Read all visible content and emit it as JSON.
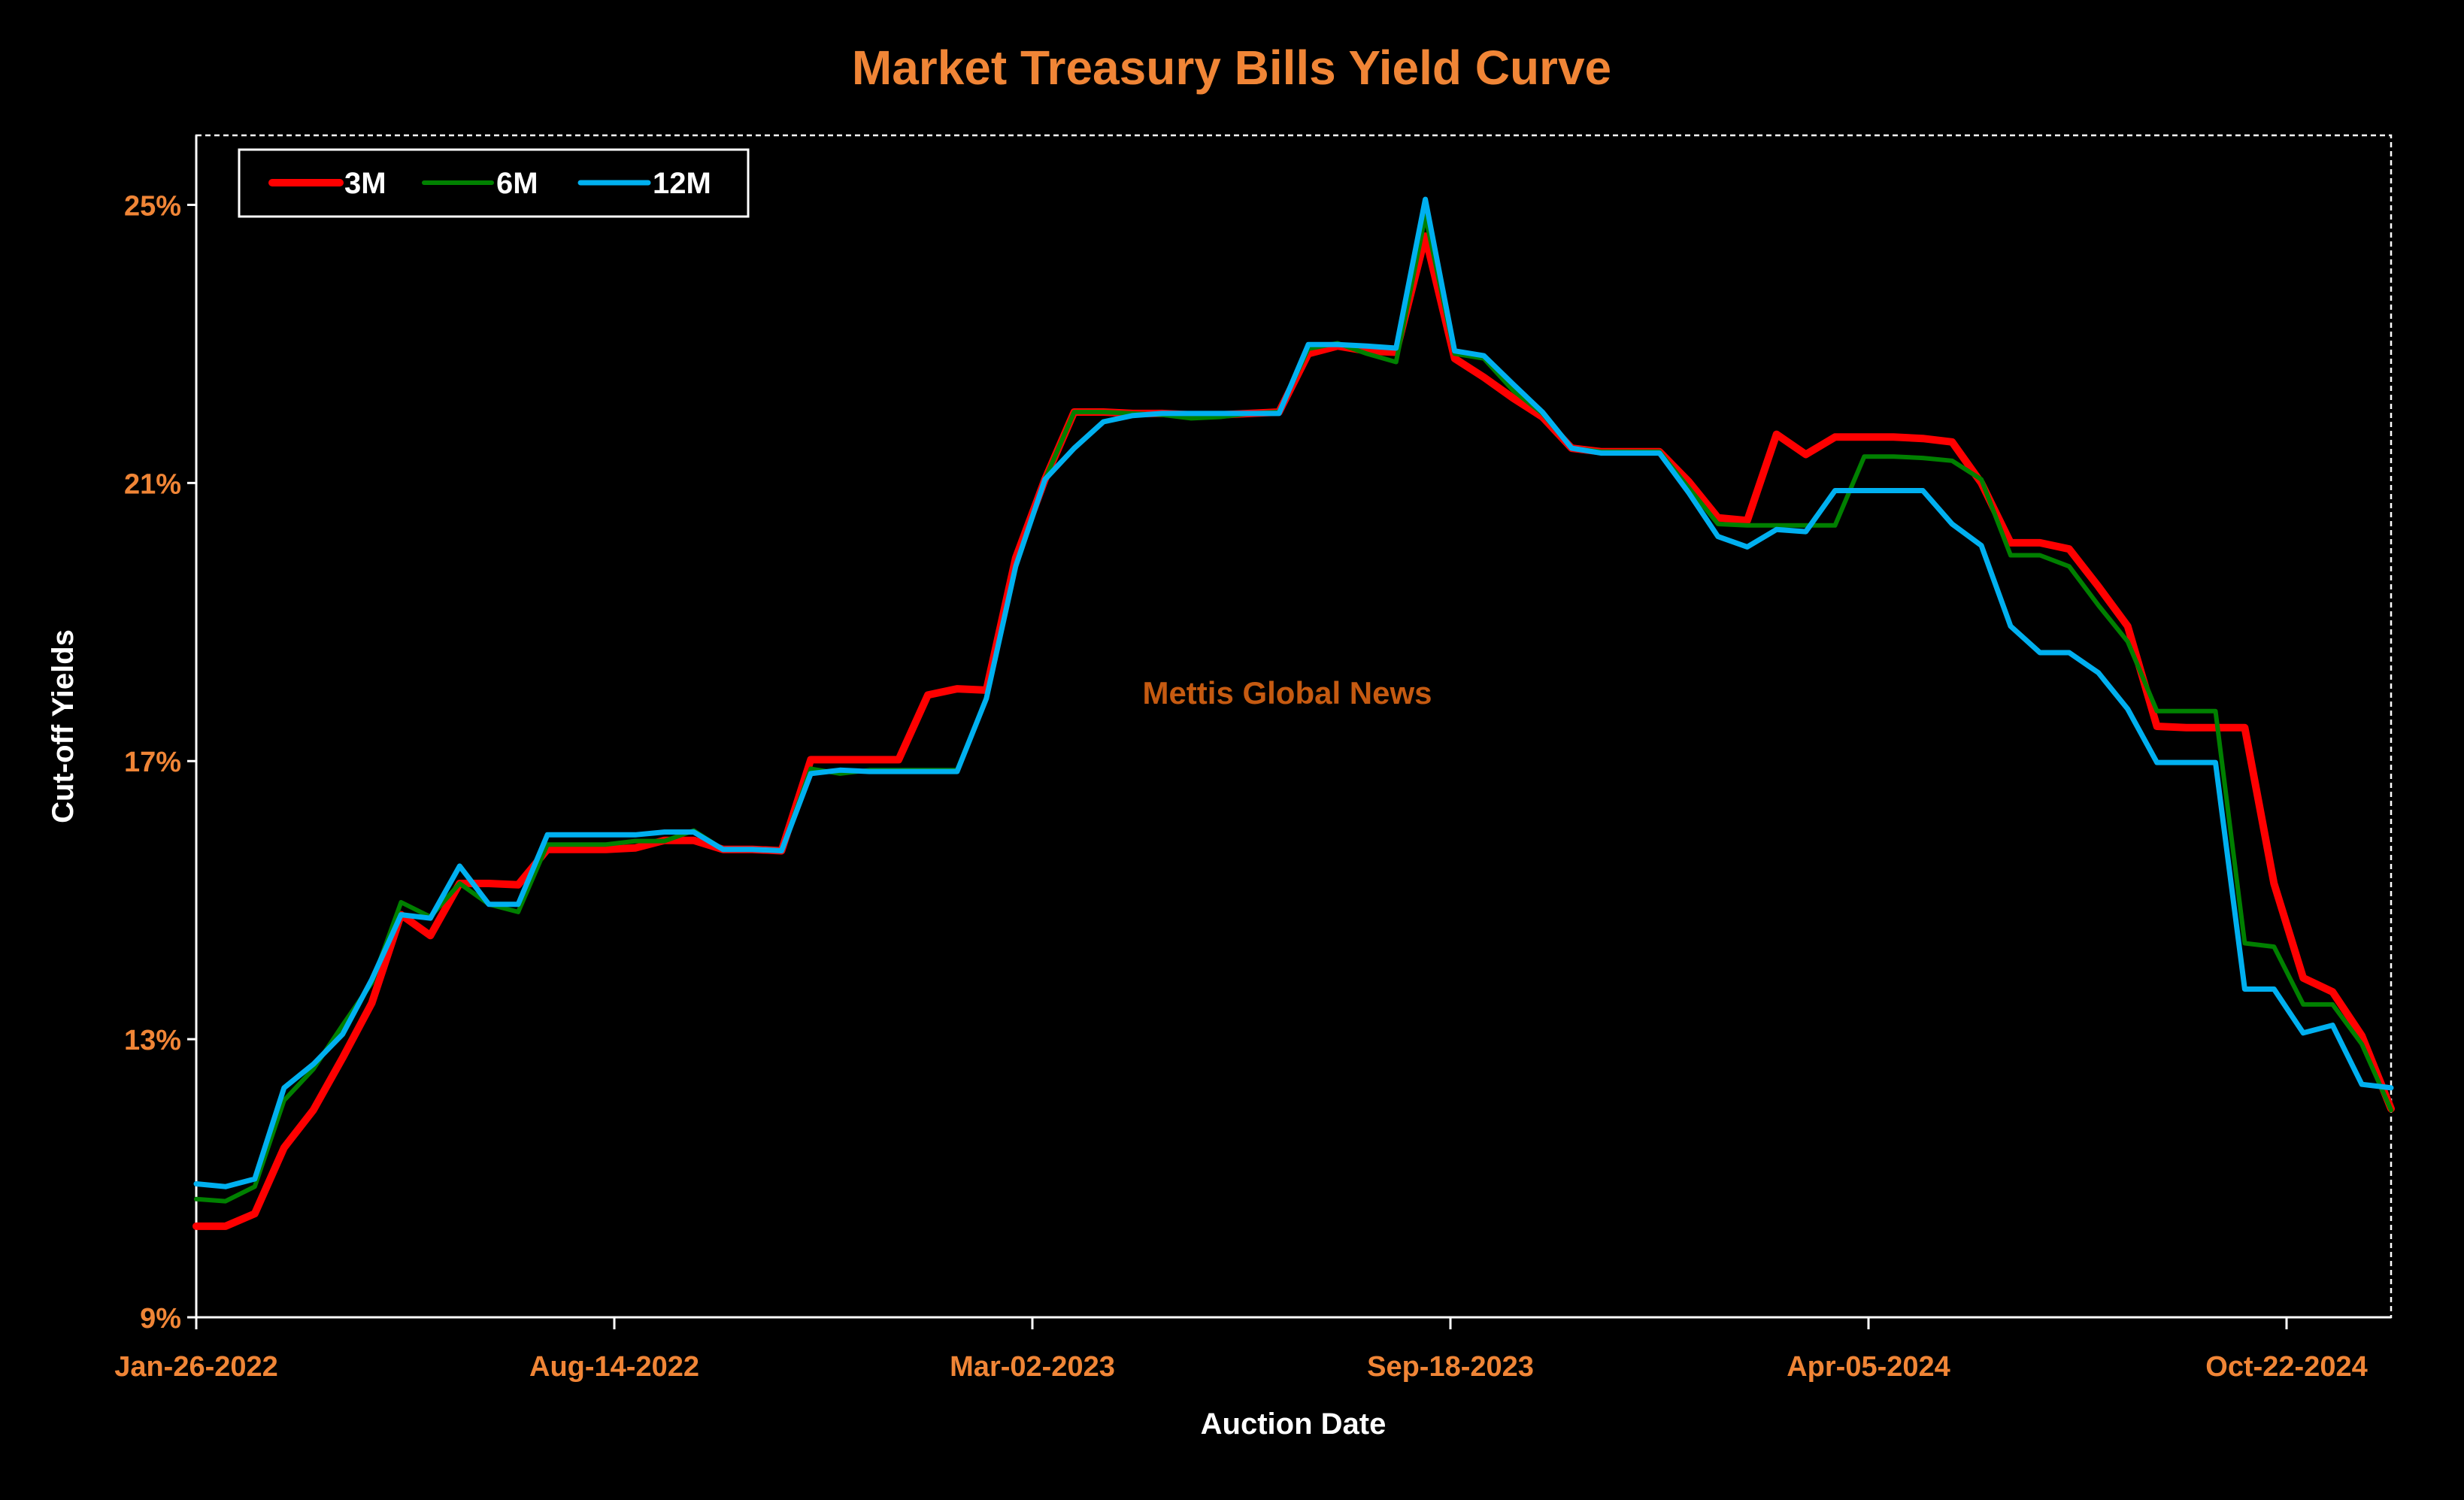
{
  "chart_data": {
    "type": "line",
    "title": "Market Treasury Bills Yield Curve",
    "xlabel": "Auction Date",
    "ylabel": "Cut-off Yields",
    "watermark": "Mettis Global News",
    "ylim": [
      9,
      26
    ],
    "y_ticks": [
      {
        "v": 9,
        "label": "9%"
      },
      {
        "v": 13,
        "label": "13%"
      },
      {
        "v": 17,
        "label": "17%"
      },
      {
        "v": 21,
        "label": "21%"
      },
      {
        "v": 25,
        "label": "25%"
      }
    ],
    "x_ticks": [
      {
        "date": "2022-01-26",
        "label": "Jan-26-2022"
      },
      {
        "date": "2022-08-14",
        "label": "Aug-14-2022"
      },
      {
        "date": "2023-03-02",
        "label": "Mar-02-2023"
      },
      {
        "date": "2023-09-18",
        "label": "Sep-18-2023"
      },
      {
        "date": "2024-04-05",
        "label": "Apr-05-2024"
      },
      {
        "date": "2024-10-22",
        "label": "Oct-22-2024"
      }
    ],
    "xlim": [
      "2022-01-26",
      "2024-12-11"
    ],
    "grid": false,
    "legend_position": "top-left",
    "x": [
      "2022-01-26",
      "2022-02-09",
      "2022-02-23",
      "2022-03-09",
      "2022-03-23",
      "2022-04-06",
      "2022-04-20",
      "2022-05-04",
      "2022-05-18",
      "2022-06-01",
      "2022-06-15",
      "2022-06-29",
      "2022-07-13",
      "2022-07-27",
      "2022-08-10",
      "2022-08-24",
      "2022-09-07",
      "2022-09-21",
      "2022-10-05",
      "2022-10-19",
      "2022-11-02",
      "2022-11-16",
      "2022-11-30",
      "2022-12-14",
      "2022-12-28",
      "2023-01-11",
      "2023-01-25",
      "2023-02-08",
      "2023-02-22",
      "2023-03-08",
      "2023-03-22",
      "2023-04-05",
      "2023-04-19",
      "2023-05-03",
      "2023-05-17",
      "2023-05-31",
      "2023-06-14",
      "2023-06-28",
      "2023-07-12",
      "2023-07-26",
      "2023-08-09",
      "2023-08-23",
      "2023-09-06",
      "2023-09-20",
      "2023-10-04",
      "2023-10-18",
      "2023-11-01",
      "2023-11-15",
      "2023-11-29",
      "2023-12-13",
      "2023-12-27",
      "2024-01-10",
      "2024-01-24",
      "2024-02-07",
      "2024-02-21",
      "2024-03-06",
      "2024-03-20",
      "2024-04-03",
      "2024-04-17",
      "2024-05-01",
      "2024-05-15",
      "2024-05-29",
      "2024-06-12",
      "2024-06-26",
      "2024-07-10",
      "2024-07-24",
      "2024-08-07",
      "2024-08-21",
      "2024-09-04",
      "2024-09-18",
      "2024-10-02",
      "2024-10-16",
      "2024-10-30",
      "2024-11-13",
      "2024-11-27",
      "2024-12-11"
    ],
    "series": [
      {
        "name": "3M",
        "color": "#FF0000",
        "values": [
          10.31,
          10.31,
          10.49,
          11.44,
          11.98,
          12.73,
          13.52,
          14.79,
          14.49,
          15.24,
          15.24,
          15.22,
          15.73,
          15.73,
          15.73,
          15.75,
          15.86,
          15.86,
          15.73,
          15.73,
          15.71,
          17.02,
          17.02,
          17.02,
          17.02,
          17.95,
          18.04,
          18.02,
          19.92,
          21.05,
          22.02,
          22.02,
          22.0,
          22.0,
          21.98,
          21.98,
          22.0,
          22.02,
          22.86,
          22.97,
          22.9,
          22.88,
          24.55,
          22.79,
          22.52,
          22.22,
          21.95,
          21.5,
          21.45,
          21.45,
          21.45,
          21.02,
          20.5,
          20.46,
          21.7,
          21.41,
          21.66,
          21.66,
          21.66,
          21.64,
          21.59,
          21.0,
          20.14,
          20.14,
          20.05,
          19.51,
          18.94,
          17.5,
          17.48,
          17.48,
          17.48,
          15.24,
          13.88,
          13.68,
          13.05,
          12.0
        ]
      },
      {
        "name": "6M",
        "color": "#008000",
        "values": [
          10.7,
          10.67,
          10.88,
          12.12,
          12.57,
          13.2,
          13.81,
          14.97,
          14.76,
          15.24,
          14.94,
          14.83,
          15.8,
          15.8,
          15.8,
          15.85,
          15.85,
          16.0,
          15.73,
          15.73,
          15.71,
          16.89,
          16.82,
          16.87,
          16.87,
          16.87,
          16.87,
          17.9,
          19.8,
          21.05,
          22.02,
          22.02,
          22.0,
          21.98,
          21.93,
          21.95,
          22.0,
          22.02,
          22.93,
          23.01,
          22.86,
          22.74,
          24.84,
          22.86,
          22.79,
          22.33,
          22.0,
          21.5,
          21.45,
          21.45,
          21.45,
          20.93,
          20.41,
          20.39,
          20.39,
          20.39,
          20.39,
          21.38,
          21.38,
          21.36,
          21.32,
          21.05,
          19.96,
          19.96,
          19.8,
          19.24,
          18.72,
          17.72,
          17.72,
          17.72,
          14.38,
          14.33,
          13.5,
          13.5,
          12.93,
          11.98
        ]
      },
      {
        "name": "12M",
        "color": "#00B0F0",
        "values": [
          10.92,
          10.88,
          10.99,
          12.3,
          12.64,
          13.07,
          13.86,
          14.79,
          14.74,
          15.49,
          14.94,
          14.94,
          15.94,
          15.94,
          15.94,
          15.94,
          15.98,
          15.98,
          15.73,
          15.73,
          15.71,
          16.82,
          16.87,
          16.85,
          16.85,
          16.85,
          16.85,
          17.9,
          19.8,
          21.05,
          21.5,
          21.88,
          21.97,
          22.0,
          22.0,
          22.0,
          22.0,
          22.0,
          22.99,
          22.99,
          22.97,
          22.94,
          25.08,
          22.9,
          22.83,
          22.42,
          22.02,
          21.5,
          21.43,
          21.43,
          21.43,
          20.86,
          20.23,
          20.08,
          20.33,
          20.3,
          20.89,
          20.89,
          20.89,
          20.89,
          20.41,
          20.1,
          18.94,
          18.56,
          18.56,
          18.27,
          17.75,
          16.98,
          16.98,
          16.98,
          13.72,
          13.72,
          13.09,
          13.2,
          12.35,
          12.3
        ]
      }
    ]
  }
}
